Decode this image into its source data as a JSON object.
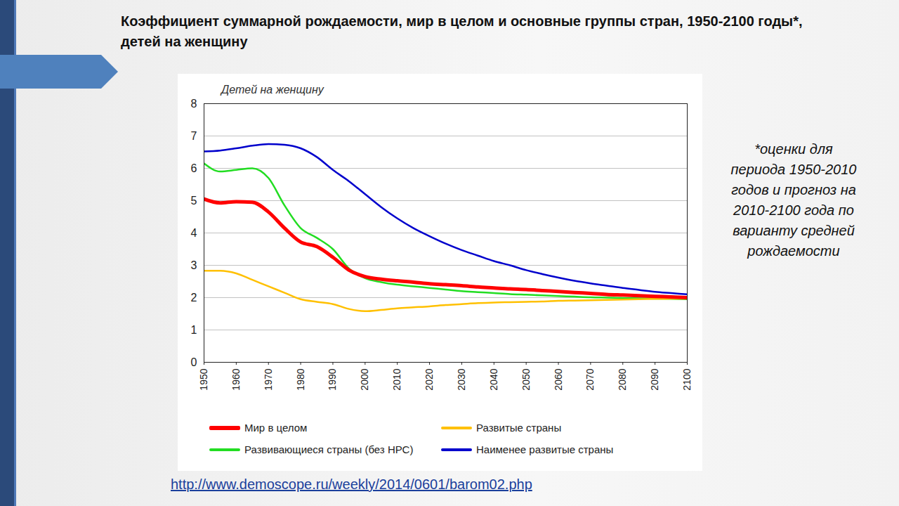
{
  "chart_data": {
    "type": "line",
    "title": "Коэффициент суммарной рождаемости, мир в целом и основные группы стран, 1950-2100 годы*, детей на женщину",
    "y_label": "Детей на женщину",
    "annotations": [
      "*оценки для периода 1950-2010 годов и прогноз на 2010-2100 года по варианту средней рождаемости",
      "http://www.demoscope.ru/weekly/2014/0601/barom02.php"
    ],
    "x": [
      1950,
      1955,
      1960,
      1965,
      1970,
      1975,
      1980,
      1985,
      1990,
      1995,
      2000,
      2005,
      2010,
      2015,
      2020,
      2025,
      2030,
      2035,
      2040,
      2045,
      2050,
      2055,
      2060,
      2065,
      2070,
      2075,
      2080,
      2085,
      2090,
      2095,
      2100
    ],
    "xlim": [
      1950,
      2100
    ],
    "xticks": [
      1950,
      1960,
      1970,
      1980,
      1990,
      2000,
      2010,
      2020,
      2030,
      2040,
      2050,
      2060,
      2070,
      2080,
      2090,
      2100
    ],
    "ylim": [
      0,
      8
    ],
    "yticks": [
      0,
      1,
      2,
      3,
      4,
      5,
      6,
      7,
      8
    ],
    "grid": true,
    "legend": "bottom",
    "series": [
      {
        "name": "Мир в целом",
        "color": "#ff0000",
        "values": [
          5.05,
          4.93,
          4.97,
          4.95,
          4.65,
          4.15,
          3.72,
          3.58,
          3.25,
          2.85,
          2.65,
          2.57,
          2.52,
          2.48,
          2.43,
          2.4,
          2.37,
          2.33,
          2.3,
          2.27,
          2.25,
          2.22,
          2.19,
          2.16,
          2.13,
          2.1,
          2.08,
          2.06,
          2.04,
          2.02,
          2.0
        ]
      },
      {
        "name": "Развитые страны",
        "color": "#ffc000",
        "values": [
          2.83,
          2.83,
          2.75,
          2.55,
          2.35,
          2.15,
          1.95,
          1.87,
          1.8,
          1.65,
          1.58,
          1.62,
          1.67,
          1.7,
          1.73,
          1.77,
          1.8,
          1.83,
          1.85,
          1.86,
          1.87,
          1.88,
          1.9,
          1.91,
          1.92,
          1.93,
          1.94,
          1.95,
          1.96,
          1.97,
          1.97
        ]
      },
      {
        "name": "Развивающиеся страны (без НРС)",
        "color": "#22dd22",
        "values": [
          6.15,
          5.9,
          5.95,
          6.0,
          5.7,
          4.85,
          4.15,
          3.85,
          3.5,
          2.9,
          2.6,
          2.48,
          2.4,
          2.35,
          2.3,
          2.25,
          2.2,
          2.17,
          2.14,
          2.11,
          2.09,
          2.07,
          2.05,
          2.03,
          2.01,
          2.0,
          1.99,
          1.98,
          1.97,
          1.96,
          1.95
        ]
      },
      {
        "name": "Наименее развитые страны",
        "color": "#0000cc",
        "values": [
          6.52,
          6.55,
          6.62,
          6.7,
          6.75,
          6.73,
          6.62,
          6.35,
          5.95,
          5.6,
          5.2,
          4.8,
          4.45,
          4.15,
          3.9,
          3.67,
          3.47,
          3.3,
          3.13,
          3.0,
          2.85,
          2.73,
          2.62,
          2.52,
          2.44,
          2.37,
          2.3,
          2.24,
          2.18,
          2.14,
          2.1
        ]
      }
    ]
  }
}
